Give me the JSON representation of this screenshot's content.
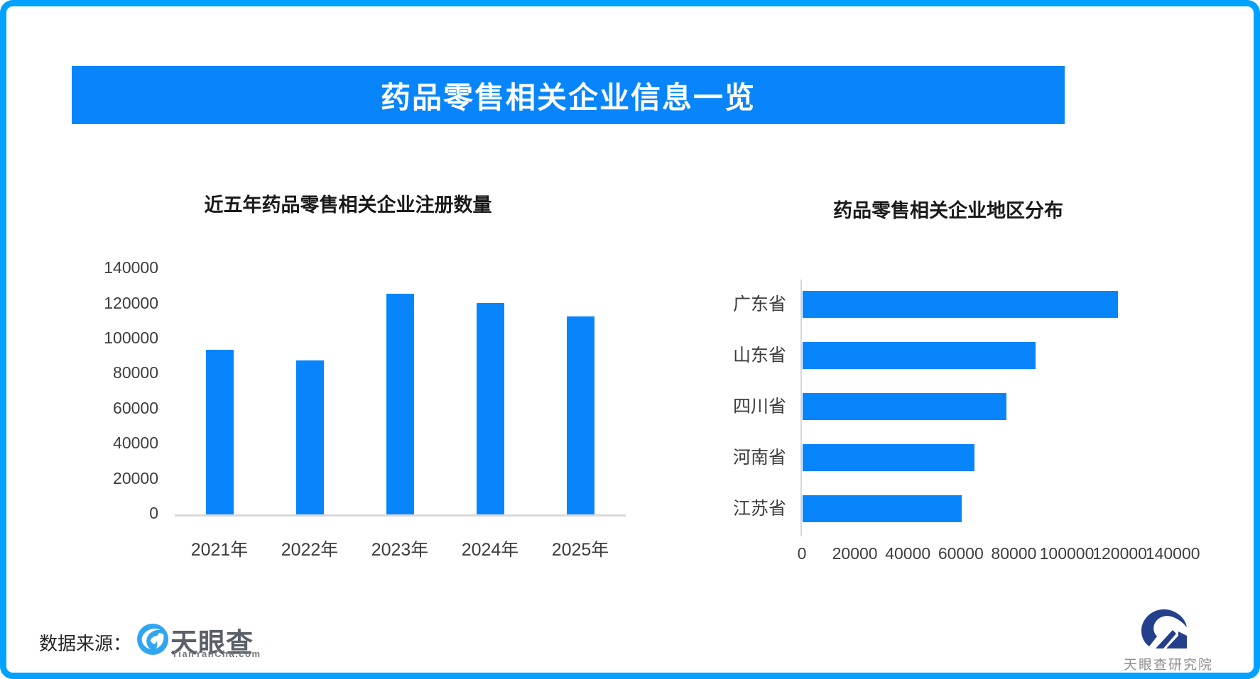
{
  "page": {
    "background": "#FFFFFF",
    "border_color": "#00A1FF"
  },
  "banner": {
    "title": "药品零售相关企业信息一览",
    "bg_color": "#0885FB",
    "text_color": "#FFFFFF"
  },
  "footer": {
    "source_label": "数据来源：",
    "tianyancha": {
      "name": "天眼查",
      "domain": "TianYanCha.com",
      "logo_color": "#2FA6F2"
    },
    "research_institute": {
      "name": "天眼查研究院",
      "logo_color": "#24408C"
    }
  },
  "chart_data": [
    {
      "type": "bar",
      "orientation": "vertical",
      "title": "近五年药品零售相关企业注册数量",
      "categories": [
        "2021年",
        "2022年",
        "2023年",
        "2024年",
        "2025年"
      ],
      "values": [
        93000,
        87000,
        125000,
        120000,
        112000
      ],
      "xlabel": "",
      "ylabel": "",
      "ylim": [
        0,
        140000
      ],
      "yticks": [
        0,
        20000,
        40000,
        60000,
        80000,
        100000,
        120000,
        140000
      ],
      "grid": false,
      "legend": "none",
      "bar_color": "#0885FB",
      "axis_color": "#D8D8D8"
    },
    {
      "type": "bar",
      "orientation": "horizontal",
      "title": "药品零售相关企业地区分布",
      "categories": [
        "广东省",
        "山东省",
        "四川省",
        "河南省",
        "江苏省"
      ],
      "values": [
        119000,
        88000,
        77000,
        65000,
        60000
      ],
      "xlabel": "",
      "ylabel": "",
      "xlim": [
        0,
        140000
      ],
      "xticks": [
        0,
        20000,
        40000,
        60000,
        80000,
        100000,
        120000,
        140000
      ],
      "grid": false,
      "legend": "none",
      "bar_color": "#0885FB",
      "axis_color": "#D8D8D8"
    }
  ]
}
